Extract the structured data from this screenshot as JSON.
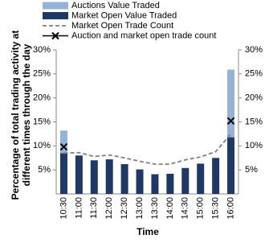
{
  "chart_data": {
    "type": "bar",
    "y_axis_label": "Percentage of total trading activity at different times through the day",
    "x_axis_label": "Time",
    "categories": [
      "10:30",
      "11:00",
      "11:30",
      "12:00",
      "12:30",
      "13:00",
      "13:30",
      "14:00",
      "14:30",
      "15:00",
      "15:30",
      "16:00"
    ],
    "series": [
      {
        "name": "Auctions Value Traded",
        "color": "#95b3d7",
        "kind": "bar",
        "values": [
          4.7,
          0,
          0,
          0,
          0,
          0,
          0,
          0,
          0,
          0,
          0,
          14.1
        ]
      },
      {
        "name": "Market Open Value Traded",
        "color": "#1f3864",
        "kind": "bar",
        "values": [
          8.5,
          8.0,
          7.0,
          7.2,
          6.2,
          5.1,
          4.1,
          4.2,
          5.4,
          6.3,
          7.5,
          11.8
        ]
      },
      {
        "name": "Market Open Trade Count",
        "color": "#808080",
        "kind": "dashed-line",
        "values": [
          8.5,
          8.6,
          7.8,
          8.1,
          7.5,
          6.8,
          6.2,
          6.2,
          7.1,
          7.7,
          8.8,
          12.5
        ]
      },
      {
        "name": "Auction and market open trade count",
        "color": "#000000",
        "kind": "x-marker",
        "values": [
          9.8,
          null,
          null,
          null,
          null,
          null,
          null,
          null,
          null,
          null,
          null,
          15.2
        ]
      }
    ],
    "ylim": [
      0,
      30
    ],
    "yticks": [
      {
        "value": 5,
        "label": "5%"
      },
      {
        "value": 10,
        "label": "10%"
      },
      {
        "value": 15,
        "label": "15%"
      },
      {
        "value": 20,
        "label": "20%"
      },
      {
        "value": 25,
        "label": "25%"
      },
      {
        "value": 30,
        "label": "30%"
      }
    ],
    "y2lim": [
      0,
      30
    ],
    "y2ticks": [
      {
        "value": 5,
        "label": "5%"
      },
      {
        "value": 10,
        "label": "10%"
      },
      {
        "value": 15,
        "label": "15%"
      },
      {
        "value": 20,
        "label": "20%"
      },
      {
        "value": 25,
        "label": "25%"
      },
      {
        "value": 30,
        "label": "30%"
      }
    ],
    "grid": false
  }
}
